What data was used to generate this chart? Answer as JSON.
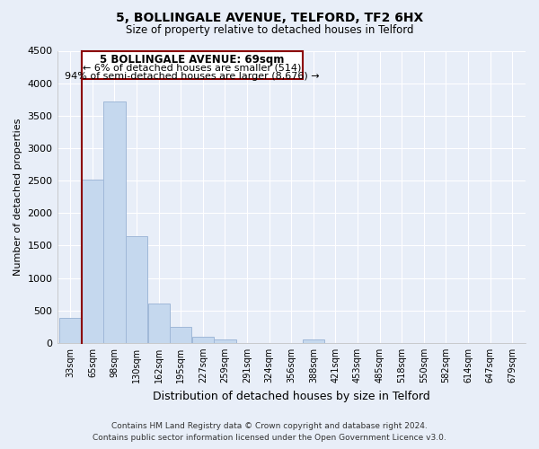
{
  "title": "5, BOLLINGALE AVENUE, TELFORD, TF2 6HX",
  "subtitle": "Size of property relative to detached houses in Telford",
  "xlabel": "Distribution of detached houses by size in Telford",
  "ylabel": "Number of detached properties",
  "bar_color": "#c5d8ee",
  "bar_edge_color": "#a0b8d8",
  "background_color": "#e8eef8",
  "grid_color": "#ffffff",
  "bin_labels": [
    "33sqm",
    "65sqm",
    "98sqm",
    "130sqm",
    "162sqm",
    "195sqm",
    "227sqm",
    "259sqm",
    "291sqm",
    "324sqm",
    "356sqm",
    "388sqm",
    "421sqm",
    "453sqm",
    "485sqm",
    "518sqm",
    "550sqm",
    "582sqm",
    "614sqm",
    "647sqm",
    "679sqm"
  ],
  "bar_heights": [
    380,
    2520,
    3720,
    1640,
    600,
    245,
    100,
    50,
    0,
    0,
    0,
    50,
    0,
    0,
    0,
    0,
    0,
    0,
    0,
    0,
    0
  ],
  "ylim": [
    0,
    4500
  ],
  "yticks": [
    0,
    500,
    1000,
    1500,
    2000,
    2500,
    3000,
    3500,
    4000,
    4500
  ],
  "annotation_title": "5 BOLLINGALE AVENUE: 69sqm",
  "annotation_line1": "← 6% of detached houses are smaller (514)",
  "annotation_line2": "94% of semi-detached houses are larger (8,676) →",
  "footer_line1": "Contains HM Land Registry data © Crown copyright and database right 2024.",
  "footer_line2": "Contains public sector information licensed under the Open Government Licence v3.0.",
  "red_line_color": "#8b0000",
  "ann_box_edge_color": "#8b0000"
}
